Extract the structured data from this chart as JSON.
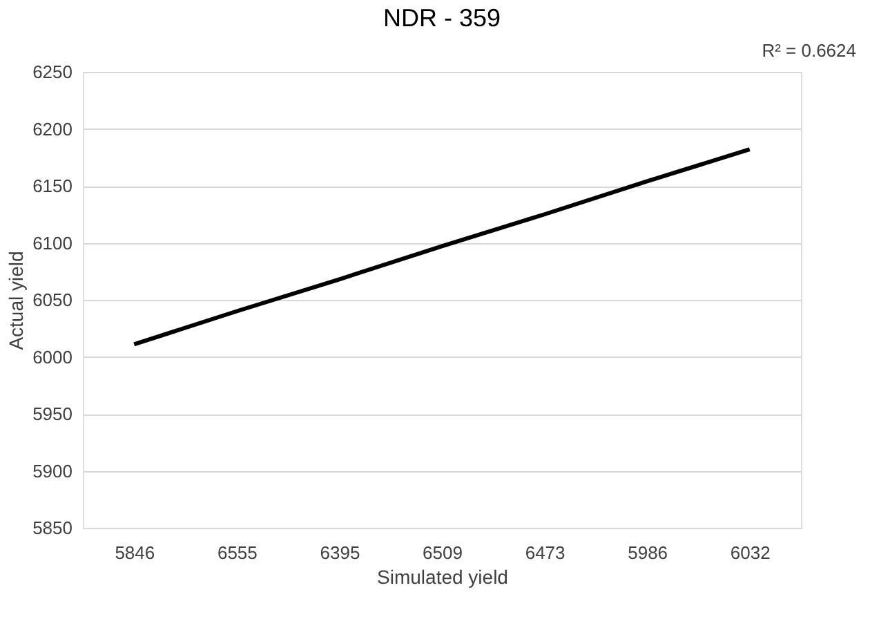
{
  "chart_data": {
    "type": "line",
    "title": "NDR - 359",
    "xlabel": "Simulated yield",
    "ylabel": "Actual yield",
    "categories": [
      "5846",
      "6555",
      "6395",
      "6509",
      "6473",
      "5986",
      "6032"
    ],
    "series": [
      {
        "color": "#000000",
        "values": [
          6011,
          6040,
          6068,
          6097,
          6125,
          6154,
          6182
        ]
      }
    ],
    "ylim": [
      5850,
      6250
    ],
    "yticks": [
      5850,
      5900,
      5950,
      6000,
      6050,
      6100,
      6150,
      6200,
      6250
    ],
    "grid": "y",
    "legend": false,
    "marker": "none",
    "line_style": "solid",
    "annotations": [
      "R² = 0.6624"
    ]
  }
}
